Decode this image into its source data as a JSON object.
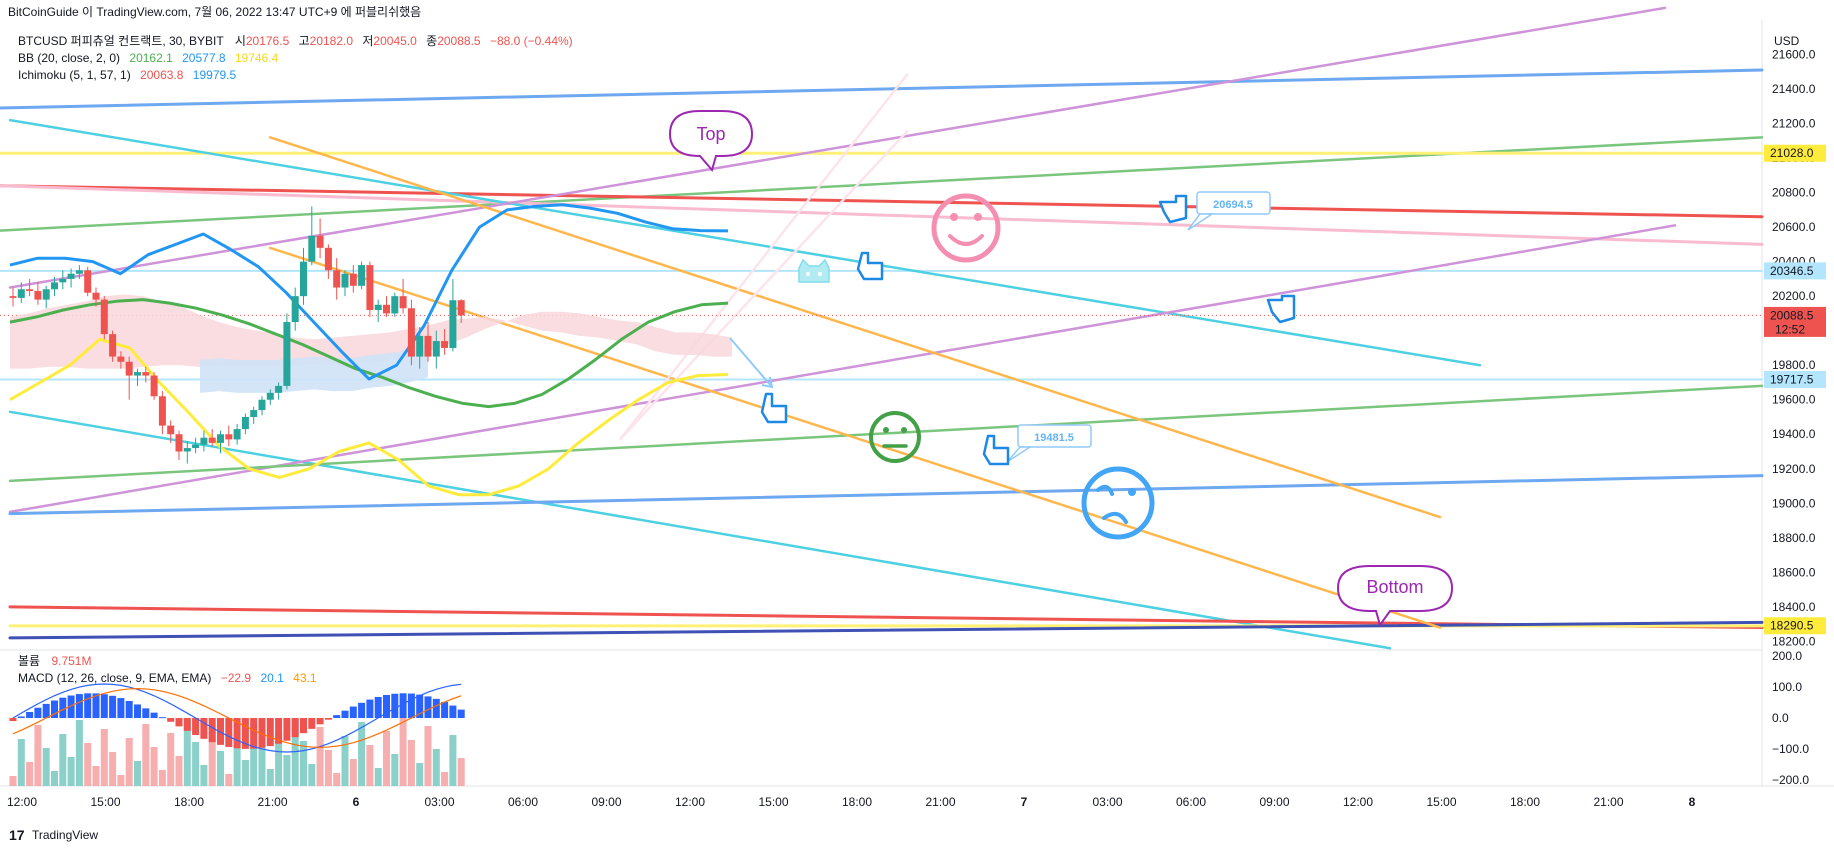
{
  "header": {
    "publish_line": "BitCoinGuide 이 TradingView.com, 7월 06, 2022 13:47 UTC+9 에 퍼블리쉬했음",
    "symbol_line": "BTCUSD 퍼피츄얼 컨트랙트, 30, BYBIT",
    "ohlc": [
      {
        "label": "시",
        "value": "20176.5"
      },
      {
        "label": "고",
        "value": "20182.0"
      },
      {
        "label": "저",
        "value": "20045.0"
      },
      {
        "label": "종",
        "value": "20088.5"
      }
    ],
    "change": "−88.0 (−0.44%)",
    "bb_label": "BB (20, close, 2, 0)",
    "bb_values": [
      "20162.1",
      "20577.8",
      "19746.4"
    ],
    "ichimoku_label": "Ichimoku (5, 1, 57, 1)",
    "ichimoku_values": [
      "20063.8",
      "19979.5"
    ],
    "volume_label": "볼륨",
    "volume_value": "9.751M",
    "macd_label": "MACD (12, 26, close, 9, EMA, EMA)",
    "macd_values": [
      "−22.9",
      "20.1",
      "43.1"
    ]
  },
  "axes": {
    "currency": "USD",
    "price_ticks": [
      "21600.0",
      "21400.0",
      "21200.0",
      "21000.0",
      "20800.0",
      "20600.0",
      "20400.0",
      "20200.0",
      "20000.0",
      "19800.0",
      "19600.0",
      "19400.0",
      "19200.0",
      "19000.0",
      "18800.0",
      "18600.0",
      "18400.0",
      "18200.0"
    ],
    "macd_ticks": [
      "200.0",
      "100.0",
      "0.0",
      "−100.0",
      "−200.0"
    ],
    "time_ticks": [
      "12:00",
      "15:00",
      "18:00",
      "21:00",
      "6",
      "03:00",
      "06:00",
      "09:00",
      "12:00",
      "15:00",
      "18:00",
      "21:00",
      "7",
      "03:00",
      "06:00",
      "09:00",
      "12:00",
      "15:00",
      "18:00",
      "21:00",
      "8"
    ],
    "price_badges": [
      "21028.0",
      "20346.5",
      "20088.5",
      "12:52",
      "19717.5",
      "18290.5"
    ]
  },
  "annotations": {
    "top": "Top",
    "bottom": "Bottom",
    "price_callout_1": "20694.5",
    "price_callout_2": "19481.5"
  },
  "footer": {
    "brand": "TradingView"
  },
  "colors": {
    "up": "#26a69a",
    "down": "#ef5350",
    "bb_basis": "#4caf50",
    "bb_upper": "#2196f3",
    "bb_lower": "#ffeb3b",
    "cloud_bear": "#f8d7da",
    "cloud_bull": "#cfe2f7",
    "accent_blue": "#2962ff"
  },
  "chart_data": {
    "type": "candlestick",
    "symbol": "BTCUSD",
    "exchange": "BYBIT",
    "interval_minutes": 30,
    "ylim": [
      18150,
      21800
    ],
    "x_range": [
      "2022-07-05 12:00",
      "2022-07-08 03:00"
    ],
    "candles": [
      {
        "t": "2022-07-05 12:00",
        "o": 20200,
        "h": 20250,
        "l": 20140,
        "c": 20190
      },
      {
        "t": "2022-07-05 12:30",
        "o": 20190,
        "h": 20280,
        "l": 20160,
        "c": 20240
      },
      {
        "t": "2022-07-05 13:00",
        "o": 20240,
        "h": 20300,
        "l": 20200,
        "c": 20230
      },
      {
        "t": "2022-07-05 13:30",
        "o": 20230,
        "h": 20280,
        "l": 20150,
        "c": 20180
      },
      {
        "t": "2022-07-05 14:00",
        "o": 20180,
        "h": 20260,
        "l": 20130,
        "c": 20240
      },
      {
        "t": "2022-07-05 14:30",
        "o": 20240,
        "h": 20310,
        "l": 20200,
        "c": 20280
      },
      {
        "t": "2022-07-05 15:00",
        "o": 20280,
        "h": 20350,
        "l": 20240,
        "c": 20300
      },
      {
        "t": "2022-07-05 15:30",
        "o": 20300,
        "h": 20360,
        "l": 20250,
        "c": 20330
      },
      {
        "t": "2022-07-05 16:00",
        "o": 20330,
        "h": 20380,
        "l": 20300,
        "c": 20350
      },
      {
        "t": "2022-07-05 16:30",
        "o": 20350,
        "h": 20370,
        "l": 20200,
        "c": 20220
      },
      {
        "t": "2022-07-05 17:00",
        "o": 20220,
        "h": 20250,
        "l": 20140,
        "c": 20180
      },
      {
        "t": "2022-07-05 17:30",
        "o": 20180,
        "h": 20200,
        "l": 19950,
        "c": 19980
      },
      {
        "t": "2022-07-05 18:00",
        "o": 19980,
        "h": 20000,
        "l": 19820,
        "c": 19850
      },
      {
        "t": "2022-07-05 18:30",
        "o": 19850,
        "h": 19880,
        "l": 19780,
        "c": 19820
      },
      {
        "t": "2022-07-05 19:00",
        "o": 19820,
        "h": 19850,
        "l": 19600,
        "c": 19740
      },
      {
        "t": "2022-07-05 19:30",
        "o": 19740,
        "h": 19780,
        "l": 19680,
        "c": 19760
      },
      {
        "t": "2022-07-05 20:00",
        "o": 19760,
        "h": 19790,
        "l": 19700,
        "c": 19740
      },
      {
        "t": "2022-07-05 20:30",
        "o": 19740,
        "h": 19760,
        "l": 19600,
        "c": 19620
      },
      {
        "t": "2022-07-05 21:00",
        "o": 19620,
        "h": 19650,
        "l": 19400,
        "c": 19450
      },
      {
        "t": "2022-07-05 21:30",
        "o": 19450,
        "h": 19480,
        "l": 19350,
        "c": 19400
      },
      {
        "t": "2022-07-05 22:00",
        "o": 19400,
        "h": 19420,
        "l": 19250,
        "c": 19300
      },
      {
        "t": "2022-07-05 22:30",
        "o": 19300,
        "h": 19360,
        "l": 19230,
        "c": 19320
      },
      {
        "t": "2022-07-05 23:00",
        "o": 19320,
        "h": 19380,
        "l": 19290,
        "c": 19340
      },
      {
        "t": "2022-07-05 23:30",
        "o": 19340,
        "h": 19420,
        "l": 19300,
        "c": 19380
      },
      {
        "t": "2022-07-06 00:00",
        "o": 19380,
        "h": 19430,
        "l": 19330,
        "c": 19350
      },
      {
        "t": "2022-07-06 00:30",
        "o": 19350,
        "h": 19420,
        "l": 19290,
        "c": 19400
      },
      {
        "t": "2022-07-06 01:00",
        "o": 19400,
        "h": 19450,
        "l": 19330,
        "c": 19370
      },
      {
        "t": "2022-07-06 01:30",
        "o": 19370,
        "h": 19460,
        "l": 19340,
        "c": 19430
      },
      {
        "t": "2022-07-06 02:00",
        "o": 19430,
        "h": 19520,
        "l": 19400,
        "c": 19500
      },
      {
        "t": "2022-07-06 02:30",
        "o": 19500,
        "h": 19560,
        "l": 19460,
        "c": 19540
      },
      {
        "t": "2022-07-06 03:00",
        "o": 19540,
        "h": 19620,
        "l": 19510,
        "c": 19600
      },
      {
        "t": "2022-07-06 03:30",
        "o": 19600,
        "h": 19660,
        "l": 19570,
        "c": 19640
      },
      {
        "t": "2022-07-06 04:00",
        "o": 19640,
        "h": 19700,
        "l": 19600,
        "c": 19680
      },
      {
        "t": "2022-07-06 04:30",
        "o": 19680,
        "h": 20100,
        "l": 19660,
        "c": 20050
      },
      {
        "t": "2022-07-06 05:00",
        "o": 20050,
        "h": 20250,
        "l": 20000,
        "c": 20200
      },
      {
        "t": "2022-07-06 05:30",
        "o": 20200,
        "h": 20480,
        "l": 20150,
        "c": 20400
      },
      {
        "t": "2022-07-06 06:00",
        "o": 20400,
        "h": 20720,
        "l": 20380,
        "c": 20550
      },
      {
        "t": "2022-07-06 06:30",
        "o": 20550,
        "h": 20650,
        "l": 20420,
        "c": 20480
      },
      {
        "t": "2022-07-06 07:00",
        "o": 20480,
        "h": 20500,
        "l": 20300,
        "c": 20350
      },
      {
        "t": "2022-07-06 07:30",
        "o": 20350,
        "h": 20420,
        "l": 20180,
        "c": 20250
      },
      {
        "t": "2022-07-06 08:00",
        "o": 20250,
        "h": 20350,
        "l": 20200,
        "c": 20330
      },
      {
        "t": "2022-07-06 08:30",
        "o": 20330,
        "h": 20380,
        "l": 20220,
        "c": 20260
      },
      {
        "t": "2022-07-06 09:00",
        "o": 20260,
        "h": 20400,
        "l": 20240,
        "c": 20380
      },
      {
        "t": "2022-07-06 09:30",
        "o": 20380,
        "h": 20400,
        "l": 20080,
        "c": 20120
      },
      {
        "t": "2022-07-06 10:00",
        "o": 20120,
        "h": 20180,
        "l": 20050,
        "c": 20150
      },
      {
        "t": "2022-07-06 10:30",
        "o": 20150,
        "h": 20200,
        "l": 20080,
        "c": 20100
      },
      {
        "t": "2022-07-06 11:00",
        "o": 20100,
        "h": 20220,
        "l": 20080,
        "c": 20200
      },
      {
        "t": "2022-07-06 11:30",
        "o": 20200,
        "h": 20300,
        "l": 20100,
        "c": 20130
      },
      {
        "t": "2022-07-06 12:00",
        "o": 20130,
        "h": 20180,
        "l": 19800,
        "c": 19850
      },
      {
        "t": "2022-07-06 12:30",
        "o": 19850,
        "h": 20020,
        "l": 19780,
        "c": 19970
      },
      {
        "t": "2022-07-06 13:00",
        "o": 19970,
        "h": 20050,
        "l": 19820,
        "c": 19850
      },
      {
        "t": "2022-07-06 13:30",
        "o": 19850,
        "h": 20000,
        "l": 19780,
        "c": 19940
      },
      {
        "t": "2022-07-06 14:00",
        "o": 19940,
        "h": 20010,
        "l": 19860,
        "c": 19900
      },
      {
        "t": "2022-07-06 14:30",
        "o": 19900,
        "h": 20300,
        "l": 19880,
        "c": 20176.5
      },
      {
        "t": "2022-07-06 15:00",
        "o": 20176.5,
        "h": 20182,
        "l": 20045,
        "c": 20088.5
      }
    ],
    "series": [
      {
        "name": "BB basis",
        "values": [
          20050,
          20080,
          20120,
          20150,
          20170,
          20180,
          20160,
          20130,
          20090,
          20040,
          19980,
          19920,
          19850,
          19780,
          19730,
          19670,
          19620,
          19580,
          19560,
          19580,
          19630,
          19720,
          19830,
          19950,
          20050,
          20110,
          20150,
          20160
        ]
      },
      {
        "name": "BB upper",
        "values": [
          20380,
          20420,
          20420,
          20400,
          20330,
          20440,
          20500,
          20560,
          20470,
          20370,
          20220,
          20050,
          19880,
          19720,
          19800,
          20030,
          20350,
          20600,
          20700,
          20720,
          20730,
          20710,
          20680,
          20630,
          20590,
          20580,
          20578
        ]
      },
      {
        "name": "BB lower",
        "values": [
          19600,
          19700,
          19800,
          19950,
          19900,
          19700,
          19520,
          19330,
          19200,
          19150,
          19200,
          19300,
          19350,
          19250,
          19100,
          19050,
          19050,
          19100,
          19200,
          19350,
          19480,
          19600,
          19700,
          19740,
          19746
        ]
      }
    ],
    "horizontal_levels": [
      21028.0,
      20346.5,
      20088.5,
      19717.5,
      18290.5
    ],
    "callouts": [
      20694.5,
      19481.5
    ],
    "annotations_text": [
      "Top",
      "Bottom"
    ],
    "macd": {
      "macd": -22.9,
      "signal": 20.1,
      "histogram": 43.1,
      "ylim": [
        -220,
        220
      ]
    },
    "volume_total": "9.751M"
  }
}
